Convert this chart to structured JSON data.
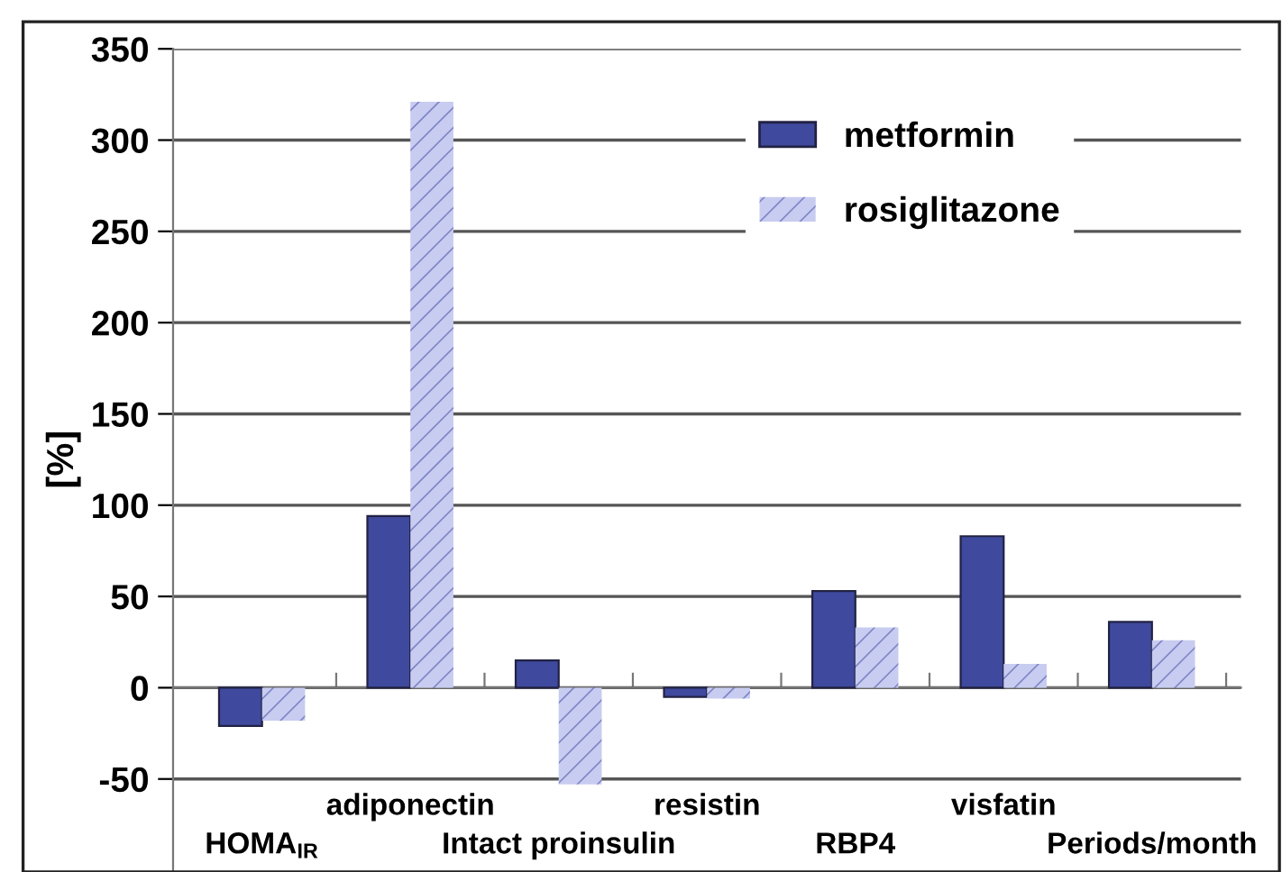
{
  "chart_data": {
    "type": "bar",
    "ylabel": "[%]",
    "categories": [
      "HOMA$_{IR}$",
      "adiponectin",
      "Intact proinsulin",
      "resistin",
      "RBP4",
      "visfatin",
      "Periods/month"
    ],
    "series": [
      {
        "name": "metformin",
        "color": "#3f4a9e",
        "values": [
          -21,
          94,
          15,
          -5,
          53,
          83,
          36
        ]
      },
      {
        "name": "rosiglitazone",
        "color": "#c8ccf0",
        "values": [
          -18,
          321,
          -53,
          -6,
          33,
          13,
          26
        ]
      }
    ],
    "ylim": [
      -100,
      350
    ],
    "yticks": [
      -50,
      0,
      50,
      100,
      150,
      200,
      250,
      300,
      350
    ],
    "grid": "y",
    "legend": "top right"
  }
}
